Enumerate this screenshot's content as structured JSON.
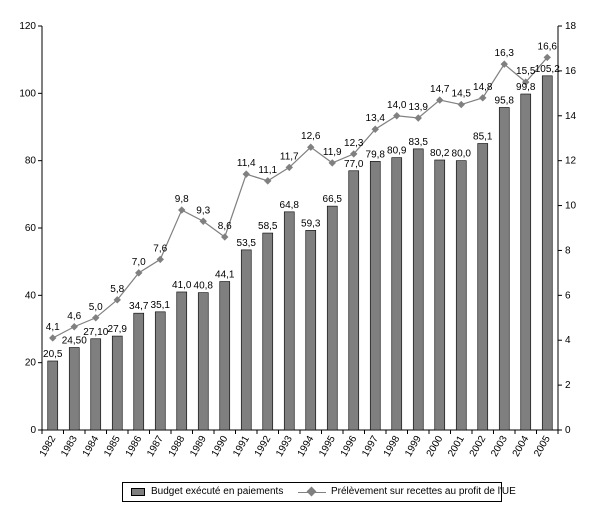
{
  "chart_data": {
    "type": "bar+line",
    "title": "",
    "xlabel": "",
    "ylabel": "",
    "categories": [
      "1982",
      "1983",
      "1984",
      "1985",
      "1986",
      "1987",
      "1988",
      "1989",
      "1990",
      "1991",
      "1992",
      "1993",
      "1994",
      "1995",
      "1996",
      "1997",
      "1998",
      "1999",
      "2000",
      "2001",
      "2002",
      "2003",
      "2004",
      "2005"
    ],
    "ylim": [
      0,
      120
    ],
    "y2lim": [
      0,
      18
    ],
    "yticks": [
      "0",
      "20",
      "40",
      "60",
      "80",
      "100",
      "120"
    ],
    "y2ticks": [
      "0",
      "2",
      "4",
      "6",
      "8",
      "10",
      "12",
      "14",
      "16",
      "18"
    ],
    "grid": false,
    "legend_placement": "bottom",
    "series": [
      {
        "name": "Budget exécuté en paiements",
        "kind": "bar",
        "axis": "left",
        "color": "#7f7f7f",
        "values": [
          20.5,
          24.5,
          27.1,
          27.9,
          34.7,
          35.1,
          41.0,
          40.8,
          44.1,
          53.5,
          58.5,
          64.8,
          59.3,
          66.5,
          77.0,
          79.8,
          80.9,
          83.5,
          80.2,
          80.0,
          85.1,
          95.8,
          99.8,
          105.2
        ],
        "labels": [
          "20,5",
          "24,50",
          "27,10",
          "27,9",
          "34,7",
          "35,1",
          "41,0",
          "40,8",
          "44,1",
          "53,5",
          "58,5",
          "64,8",
          "59,3",
          "66,5",
          "77,0",
          "79,8",
          "80,9",
          "83,5",
          "80,2",
          "80,0",
          "85,1",
          "95,8",
          "99,8",
          "105,2"
        ]
      },
      {
        "name": "Prélèvement sur recettes au profit de l'UE",
        "kind": "line",
        "axis": "right",
        "color": "#808080",
        "values": [
          4.1,
          4.6,
          5.0,
          5.8,
          7.0,
          7.6,
          9.8,
          9.3,
          8.6,
          11.4,
          11.1,
          11.7,
          12.6,
          11.9,
          12.3,
          13.4,
          14.0,
          13.9,
          14.7,
          14.5,
          14.8,
          16.3,
          15.5,
          16.6
        ],
        "labels": [
          "4,1",
          "4,6",
          "5,0",
          "5,8",
          "7,0",
          "7,6",
          "9,8",
          "9,3",
          "8,6",
          "11,4",
          "11,1",
          "11,7",
          "12,6",
          "11,9",
          "12,3",
          "13,4",
          "14,0",
          "13,9",
          "14,7",
          "14,5",
          "14,8",
          "16,3",
          "15,5",
          "16,6"
        ]
      }
    ]
  },
  "legend": {
    "bar_label": "Budget exécuté en paiements",
    "line_label": "Prélèvement sur recettes au profit de l'UE"
  }
}
